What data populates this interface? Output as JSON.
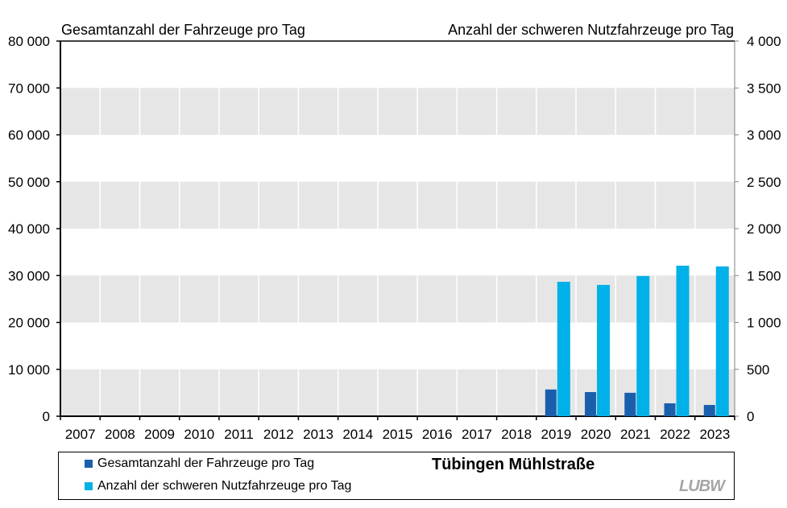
{
  "chart_data": {
    "type": "bar",
    "title": "Tübingen Mühlstraße",
    "left_axis_title": "Gesamtanzahl der Fahrzeuge pro Tag",
    "right_axis_title": "Anzahl der schweren Nutzfahrzeuge pro Tag",
    "categories": [
      "2007",
      "2008",
      "2009",
      "2010",
      "2011",
      "2012",
      "2013",
      "2014",
      "2015",
      "2016",
      "2017",
      "2018",
      "2019",
      "2020",
      "2021",
      "2022",
      "2023"
    ],
    "series": [
      {
        "name": "Gesamtanzahl der Fahrzeuge pro Tag",
        "axis": "left",
        "color": "#1a5fab",
        "values": [
          null,
          null,
          null,
          null,
          null,
          null,
          null,
          null,
          null,
          null,
          null,
          null,
          5700,
          5150,
          5000,
          2750,
          2400
        ]
      },
      {
        "name": "Anzahl der schweren Nutzfahrzeuge pro Tag",
        "axis": "right",
        "color": "#00b0e8",
        "values": [
          null,
          null,
          null,
          null,
          null,
          null,
          null,
          null,
          null,
          null,
          null,
          null,
          1433,
          1400,
          1495,
          1605,
          1597
        ]
      }
    ],
    "left_ylim": [
      0,
      80000
    ],
    "left_ticks": [
      "0",
      "10 000",
      "20 000",
      "30 000",
      "40 000",
      "50 000",
      "60 000",
      "70 000",
      "80 000"
    ],
    "right_ylim": [
      0,
      4000
    ],
    "right_ticks": [
      "0",
      "500",
      "1 000",
      "1 500",
      "2 000",
      "2 500",
      "3 000",
      "3 500",
      "4 000"
    ],
    "grid": "alternating horizontal bands",
    "legend_position": "bottom"
  },
  "legend": {
    "items": [
      {
        "label": "Gesamtanzahl der Fahrzeuge pro Tag",
        "color": "#1a5fab"
      },
      {
        "label": "Anzahl der schweren Nutzfahrzeuge pro Tag",
        "color": "#00b0e8"
      }
    ],
    "title": "Tübingen Mühlstraße",
    "logo": "LUBW"
  },
  "colors": {
    "band": "#e6e6e6",
    "dark_bar": "#1a5fab",
    "light_bar": "#00b0e8"
  }
}
